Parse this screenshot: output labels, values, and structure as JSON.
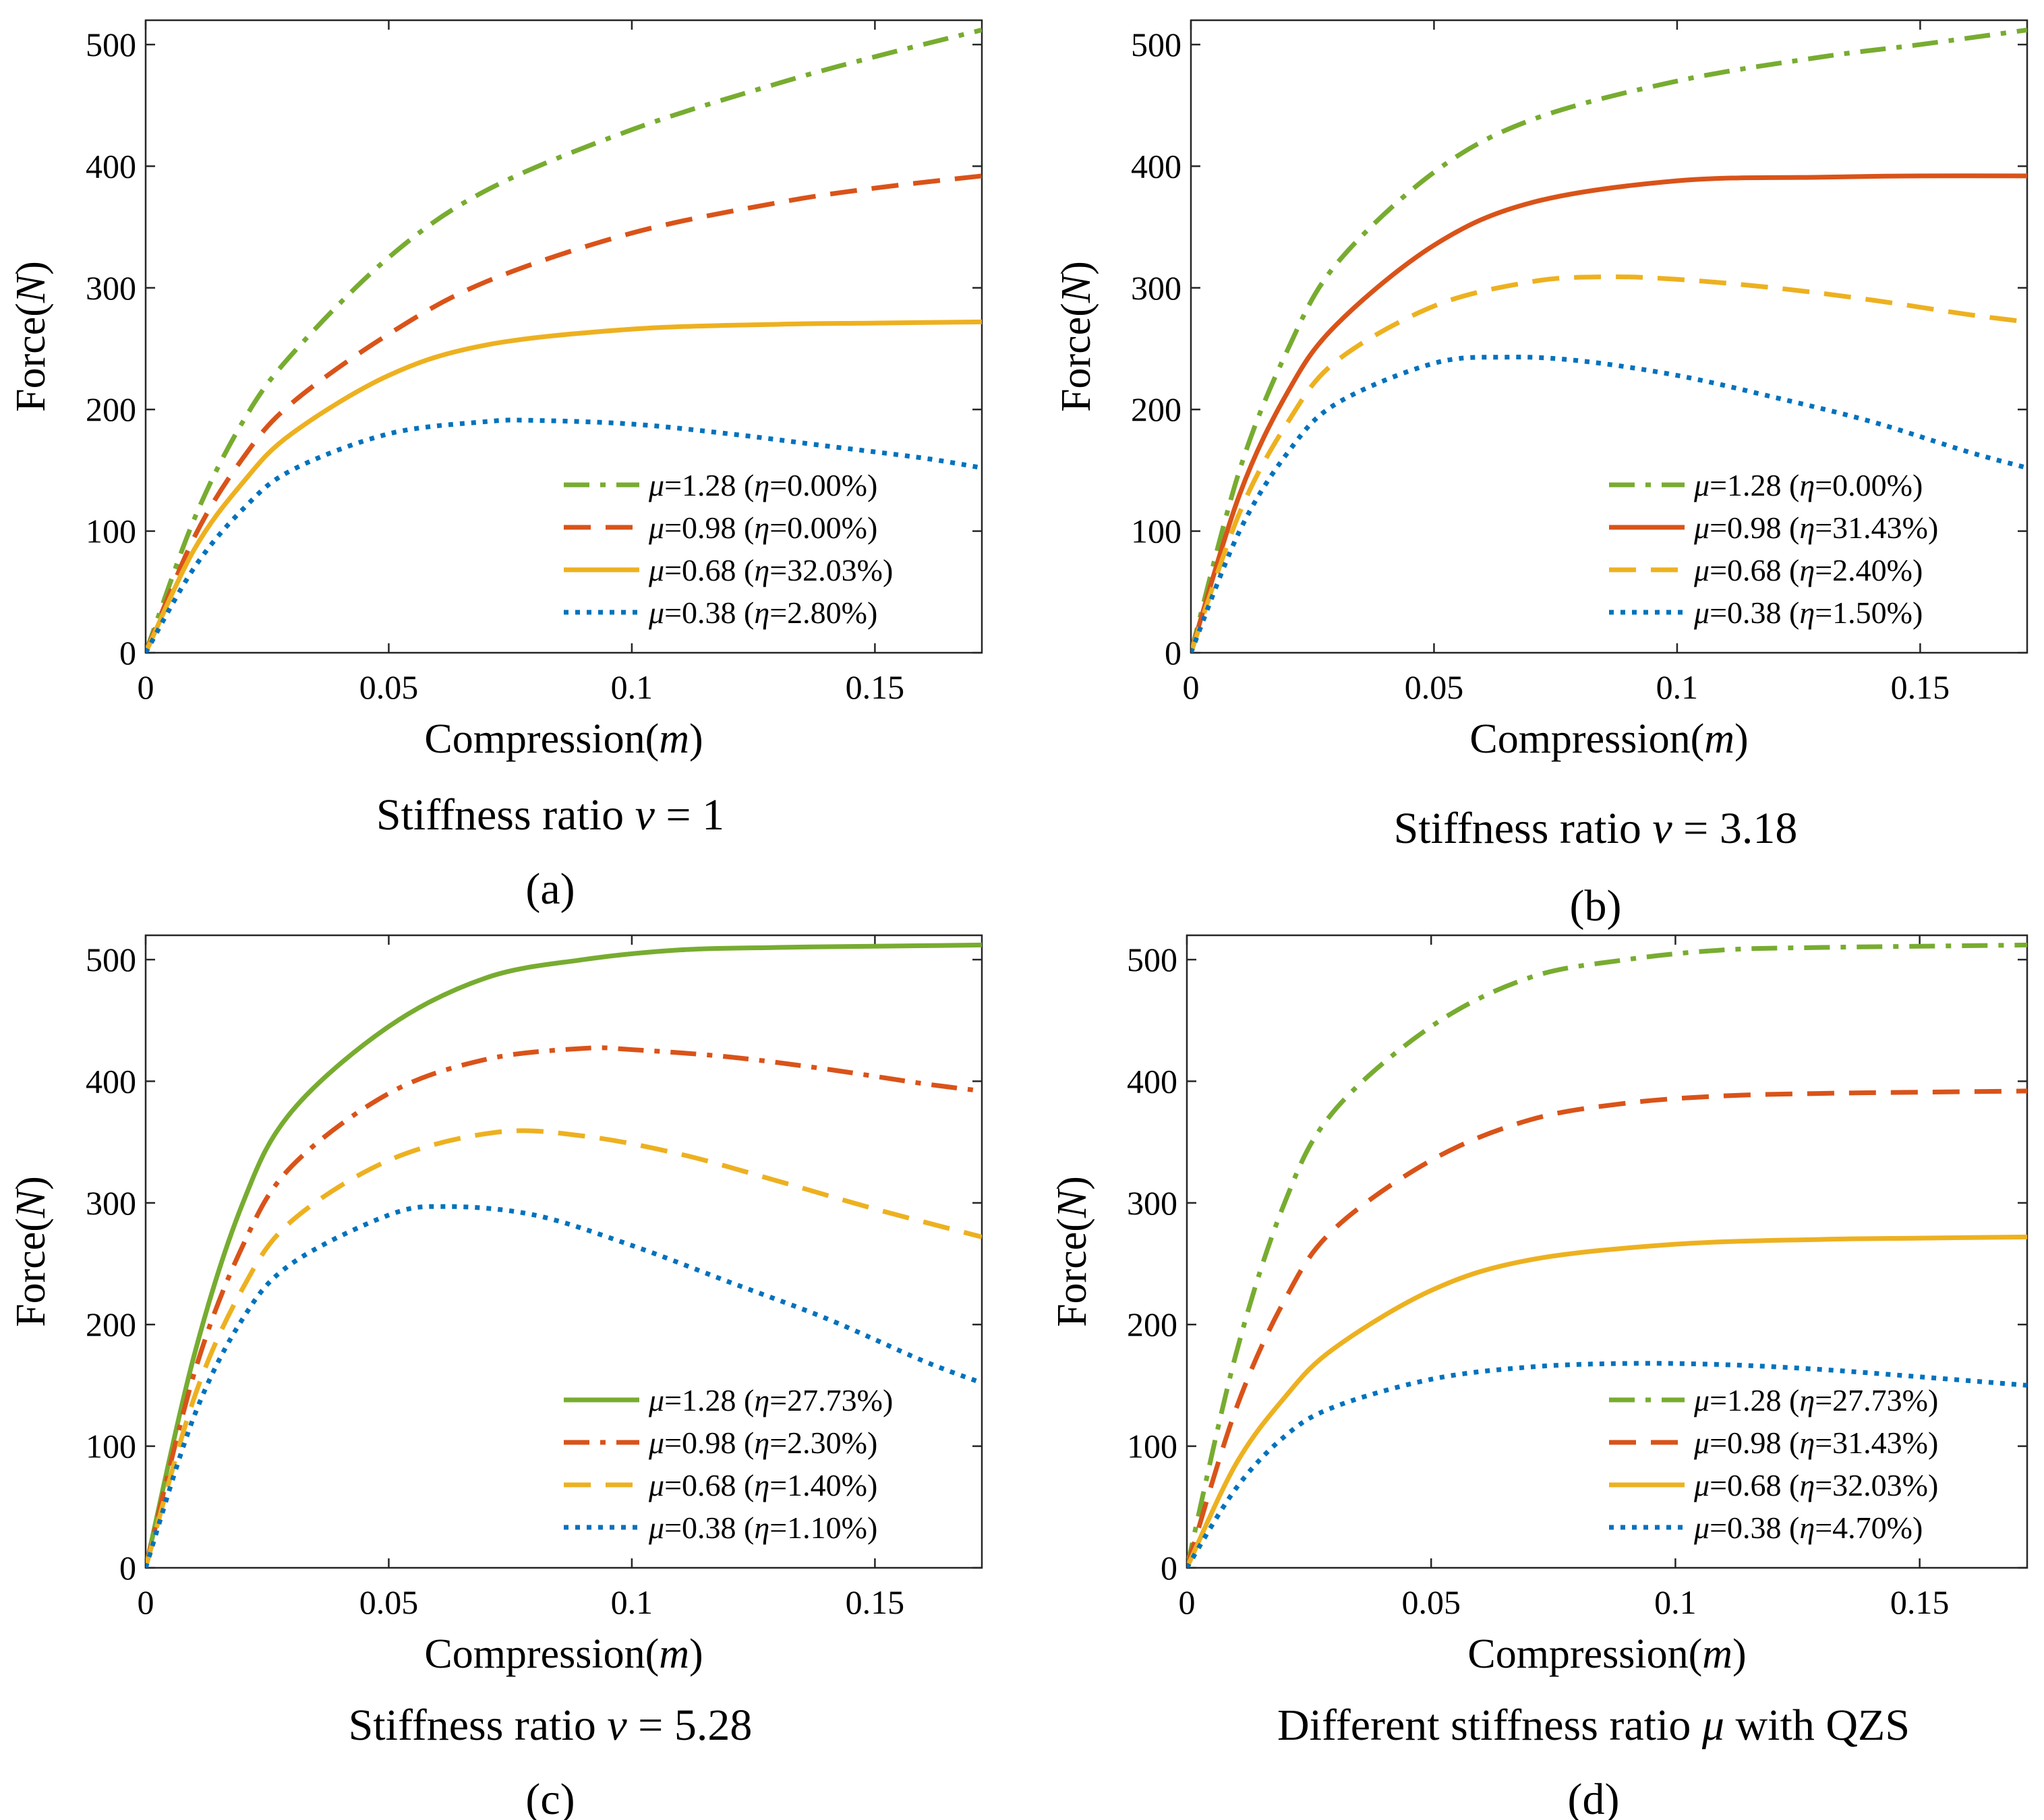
{
  "chart_data": [
    {
      "type": "line",
      "panel": "a",
      "panel_label": "(a)",
      "title": "Stiffness ratio ν = 1",
      "xlabel": "Compression(m)",
      "ylabel": "Force(N)",
      "xlim": [
        0,
        0.172
      ],
      "ylim": [
        0,
        520
      ],
      "xticks": [
        0,
        0.05,
        0.1,
        0.15
      ],
      "xtick_labels": [
        "0",
        "0.05",
        "0.1",
        "0.15"
      ],
      "yticks": [
        0,
        100,
        200,
        300,
        400,
        500
      ],
      "ytick_labels": [
        "0",
        "100",
        "200",
        "300",
        "400",
        "500"
      ],
      "legend_position": "bottom-right",
      "series": [
        {
          "name": "μ=1.28 (η=0.00%)",
          "color": "#77AC30",
          "style": "dashdot",
          "x": [
            0,
            0.01,
            0.02,
            0.03,
            0.05,
            0.07,
            0.1,
            0.13,
            0.15,
            0.172
          ],
          "y": [
            0,
            110,
            190,
            245,
            325,
            380,
            430,
            468,
            490,
            512
          ]
        },
        {
          "name": "μ=0.98 (η=0.00%)",
          "color": "#D95319",
          "style": "dashed",
          "x": [
            0,
            0.01,
            0.02,
            0.03,
            0.05,
            0.07,
            0.1,
            0.13,
            0.15,
            0.172
          ],
          "y": [
            0,
            95,
            160,
            205,
            262,
            305,
            345,
            370,
            382,
            392
          ]
        },
        {
          "name": "μ=0.68 (η=32.03%)",
          "color": "#EDB120",
          "style": "solid",
          "x": [
            0,
            0.01,
            0.02,
            0.03,
            0.05,
            0.07,
            0.1,
            0.13,
            0.15,
            0.172
          ],
          "y": [
            0,
            85,
            140,
            180,
            228,
            253,
            266,
            270,
            271,
            272
          ]
        },
        {
          "name": "μ=0.38 (η=2.80%)",
          "color": "#0072BD",
          "style": "dotted",
          "x": [
            0,
            0.01,
            0.02,
            0.03,
            0.05,
            0.07,
            0.08,
            0.1,
            0.12,
            0.14,
            0.16,
            0.172
          ],
          "y": [
            0,
            70,
            118,
            150,
            180,
            190,
            191,
            188,
            180,
            170,
            160,
            152
          ]
        }
      ]
    },
    {
      "type": "line",
      "panel": "b",
      "panel_label": "(b)",
      "title": "Stiffness ratio ν = 3.18",
      "xlabel": "Compression(m)",
      "ylabel": "Force(N)",
      "xlim": [
        0,
        0.172
      ],
      "ylim": [
        0,
        520
      ],
      "xticks": [
        0,
        0.05,
        0.1,
        0.15
      ],
      "xtick_labels": [
        "0",
        "0.05",
        "0.1",
        "0.15"
      ],
      "yticks": [
        0,
        100,
        200,
        300,
        400,
        500
      ],
      "ytick_labels": [
        "0",
        "100",
        "200",
        "300",
        "400",
        "500"
      ],
      "legend_position": "bottom-right",
      "series": [
        {
          "name": "μ=1.28 (η=0.00%)",
          "color": "#77AC30",
          "style": "dashdot",
          "x": [
            0,
            0.01,
            0.02,
            0.03,
            0.05,
            0.07,
            0.1,
            0.13,
            0.15,
            0.172
          ],
          "y": [
            0,
            150,
            250,
            320,
            395,
            438,
            470,
            490,
            500,
            512
          ]
        },
        {
          "name": "μ=0.98 (η=31.43%)",
          "color": "#D95319",
          "style": "solid",
          "x": [
            0,
            0.01,
            0.02,
            0.03,
            0.05,
            0.07,
            0.1,
            0.13,
            0.15,
            0.172
          ],
          "y": [
            0,
            130,
            215,
            270,
            335,
            370,
            388,
            391,
            392,
            392
          ]
        },
        {
          "name": "μ=0.68 (η=2.40%)",
          "color": "#EDB120",
          "style": "dashed",
          "x": [
            0,
            0.01,
            0.02,
            0.03,
            0.05,
            0.07,
            0.085,
            0.1,
            0.12,
            0.14,
            0.16,
            0.172
          ],
          "y": [
            0,
            115,
            190,
            240,
            285,
            305,
            309,
            307,
            300,
            290,
            278,
            272
          ]
        },
        {
          "name": "μ=0.38 (η=1.50%)",
          "color": "#0072BD",
          "style": "dotted",
          "x": [
            0,
            0.01,
            0.02,
            0.03,
            0.05,
            0.065,
            0.08,
            0.1,
            0.12,
            0.14,
            0.16,
            0.172
          ],
          "y": [
            0,
            100,
            165,
            205,
            238,
            243,
            240,
            228,
            210,
            190,
            165,
            152
          ]
        }
      ]
    },
    {
      "type": "line",
      "panel": "c",
      "panel_label": "(c)",
      "title": "Stiffness ratio ν = 5.28",
      "xlabel": "Compression(m)",
      "ylabel": "Force(N)",
      "xlim": [
        0,
        0.172
      ],
      "ylim": [
        0,
        520
      ],
      "xticks": [
        0,
        0.05,
        0.1,
        0.15
      ],
      "xtick_labels": [
        "0",
        "0.05",
        "0.1",
        "0.15"
      ],
      "yticks": [
        0,
        100,
        200,
        300,
        400,
        500
      ],
      "ytick_labels": [
        "0",
        "100",
        "200",
        "300",
        "400",
        "500"
      ],
      "legend_position": "bottom-right",
      "series": [
        {
          "name": "μ=1.28 (η=27.73%)",
          "color": "#77AC30",
          "style": "solid",
          "x": [
            0,
            0.01,
            0.02,
            0.03,
            0.05,
            0.07,
            0.09,
            0.11,
            0.13,
            0.15,
            0.172
          ],
          "y": [
            0,
            175,
            300,
            375,
            445,
            485,
            500,
            508,
            510,
            511,
            512
          ]
        },
        {
          "name": "μ=0.98 (η=2.30%)",
          "color": "#D95319",
          "style": "dashdot",
          "x": [
            0,
            0.01,
            0.02,
            0.03,
            0.05,
            0.07,
            0.09,
            0.1,
            0.12,
            0.14,
            0.16,
            0.172
          ],
          "y": [
            0,
            160,
            265,
            330,
            390,
            418,
            427,
            426,
            420,
            410,
            398,
            392
          ]
        },
        {
          "name": "μ=0.68 (η=1.40%)",
          "color": "#EDB120",
          "style": "dashed",
          "x": [
            0,
            0.01,
            0.02,
            0.03,
            0.05,
            0.072,
            0.09,
            0.11,
            0.13,
            0.15,
            0.172
          ],
          "y": [
            0,
            140,
            230,
            285,
            335,
            358,
            355,
            340,
            318,
            295,
            272
          ]
        },
        {
          "name": "μ=0.38 (η=1.10%)",
          "color": "#0072BD",
          "style": "dotted",
          "x": [
            0,
            0.01,
            0.02,
            0.03,
            0.05,
            0.062,
            0.08,
            0.1,
            0.12,
            0.14,
            0.16,
            0.172
          ],
          "y": [
            0,
            125,
            205,
            250,
            290,
            297,
            290,
            265,
            235,
            205,
            170,
            152
          ]
        }
      ]
    },
    {
      "type": "line",
      "panel": "d",
      "panel_label": "(d)",
      "title": "Different stiffness ratio μ with QZS",
      "xlabel": "Compression(m)",
      "ylabel": "Force(N)",
      "xlim": [
        0,
        0.172
      ],
      "ylim": [
        0,
        520
      ],
      "xticks": [
        0,
        0.05,
        0.1,
        0.15
      ],
      "xtick_labels": [
        "0",
        "0.05",
        "0.1",
        "0.15"
      ],
      "yticks": [
        0,
        100,
        200,
        300,
        400,
        500
      ],
      "ytick_labels": [
        "0",
        "100",
        "200",
        "300",
        "400",
        "500"
      ],
      "legend_position": "bottom-right",
      "series": [
        {
          "name": "μ=1.28 (η=27.73%)",
          "color": "#77AC30",
          "style": "dashdot",
          "x": [
            0,
            0.01,
            0.02,
            0.03,
            0.05,
            0.07,
            0.09,
            0.11,
            0.13,
            0.15,
            0.172
          ],
          "y": [
            0,
            175,
            300,
            375,
            445,
            485,
            500,
            508,
            510,
            511,
            512
          ]
        },
        {
          "name": "μ=0.98 (η=31.43%)",
          "color": "#D95319",
          "style": "dashed",
          "x": [
            0,
            0.01,
            0.02,
            0.03,
            0.05,
            0.07,
            0.09,
            0.11,
            0.13,
            0.15,
            0.172
          ],
          "y": [
            0,
            130,
            220,
            278,
            335,
            368,
            382,
            388,
            390,
            391,
            392
          ]
        },
        {
          "name": "μ=0.68 (η=32.03%)",
          "color": "#EDB120",
          "style": "solid",
          "x": [
            0,
            0.01,
            0.02,
            0.03,
            0.05,
            0.07,
            0.1,
            0.13,
            0.15,
            0.172
          ],
          "y": [
            0,
            85,
            140,
            180,
            228,
            253,
            266,
            270,
            271,
            272
          ]
        },
        {
          "name": "μ=0.38 (η=4.70%)",
          "color": "#0072BD",
          "style": "dotted",
          "x": [
            0,
            0.01,
            0.02,
            0.03,
            0.05,
            0.07,
            0.09,
            0.11,
            0.13,
            0.15,
            0.172
          ],
          "y": [
            0,
            65,
            108,
            132,
            155,
            165,
            168,
            167,
            163,
            157,
            150
          ]
        }
      ]
    }
  ]
}
